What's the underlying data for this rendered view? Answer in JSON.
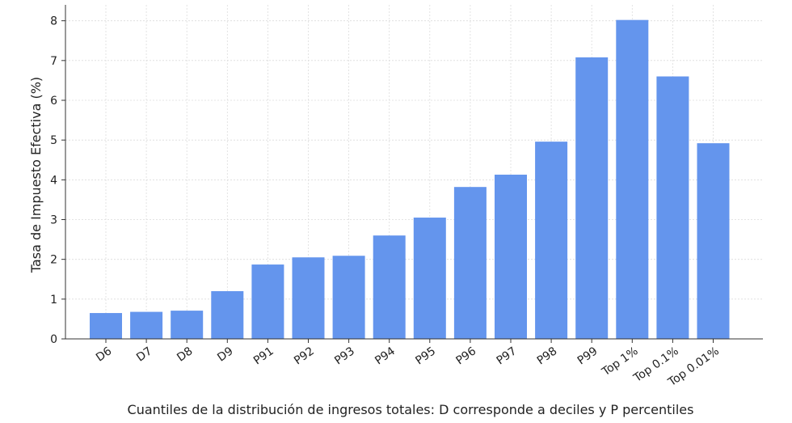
{
  "chart_data": {
    "type": "bar",
    "title": "",
    "xlabel": "Cuantiles de la distribución de ingresos totales: D corresponde a deciles y P percentiles",
    "ylabel": "Tasa de Impuesto Efectiva (%)",
    "categories": [
      "D6",
      "D7",
      "D8",
      "D9",
      "P91",
      "P92",
      "P93",
      "P94",
      "P95",
      "P96",
      "P97",
      "P98",
      "P99",
      "Top 1%",
      "Top 0.1%",
      "Top 0.01%"
    ],
    "values": [
      0.65,
      0.68,
      0.71,
      1.2,
      1.87,
      2.05,
      2.09,
      2.6,
      3.05,
      3.82,
      4.13,
      4.96,
      7.08,
      8.02,
      6.6,
      4.92
    ],
    "ylim": [
      0,
      8.4
    ],
    "yticks": [
      0,
      1,
      2,
      3,
      4,
      5,
      6,
      7,
      8
    ],
    "grid": true,
    "bar_color": "#6495ED"
  }
}
